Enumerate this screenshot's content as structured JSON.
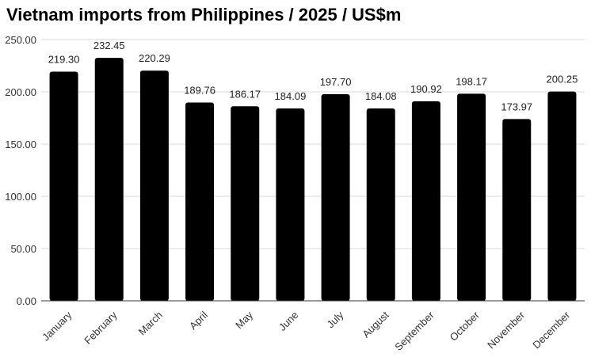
{
  "chart_data": {
    "type": "bar",
    "title": "Vietnam imports from Philippines / 2025 / US$m",
    "xlabel": "",
    "ylabel": "",
    "categories": [
      "January",
      "February",
      "March",
      "April",
      "May",
      "June",
      "July",
      "August",
      "September",
      "October",
      "November",
      "December"
    ],
    "values": [
      219.3,
      232.45,
      220.29,
      189.76,
      186.17,
      184.09,
      197.7,
      184.08,
      190.92,
      198.17,
      173.97,
      200.25
    ],
    "value_labels": [
      "219.30",
      "232.45",
      "220.29",
      "189.76",
      "186.17",
      "184.09",
      "197.70",
      "184.08",
      "190.92",
      "198.17",
      "173.97",
      "200.25"
    ],
    "ylim": [
      0,
      250
    ],
    "yticks": [
      0,
      50,
      100,
      150,
      200,
      250
    ],
    "ytick_labels": [
      "0.00",
      "50.00",
      "100.00",
      "150.00",
      "200.00",
      "250.00"
    ],
    "grid": true,
    "legend": "none",
    "bar_color": "#000000",
    "grid_color": "#d9d9d9"
  }
}
